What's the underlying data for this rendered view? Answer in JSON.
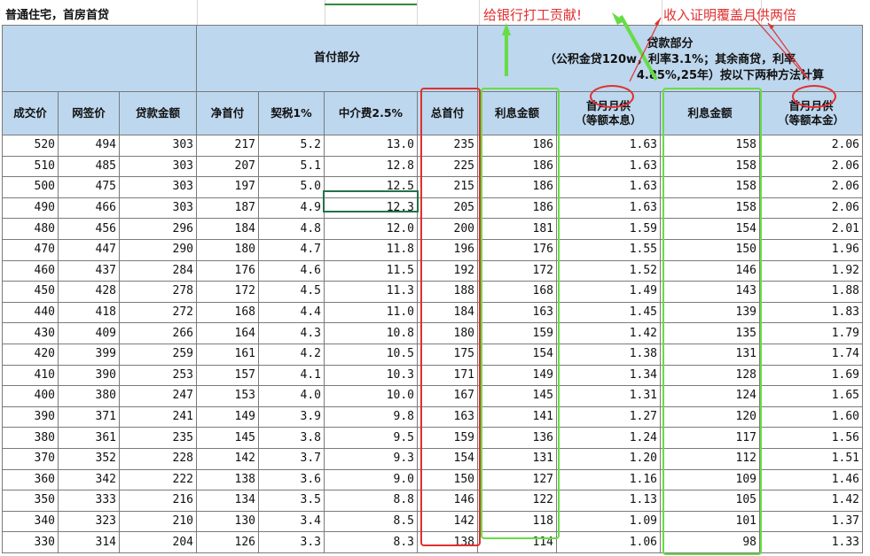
{
  "title": "普通住宅，首房首贷",
  "annotations": {
    "bank_note": "给银行打工贡献!",
    "income_note": "收入证明覆盖月供两倍"
  },
  "groups": {
    "down_payment": "首付部分",
    "loan_title": "贷款部分",
    "loan_desc_1": "（公积金贷120w，利率3.1%；其余商贷，利率",
    "loan_desc_2": "4.85%,25年）按以下两种方法计算"
  },
  "headers": {
    "deal_price": "成交价",
    "net_sign_price": "网签价",
    "loan_amount": "贷款金额",
    "net_down": "净首付",
    "deed_tax": "契税1%",
    "agency_fee": "中介费2.5%",
    "total_down": "总首付",
    "interest_a": "利息金额",
    "monthly_a_1": "首月月供",
    "monthly_a_2": "（等额本息）",
    "interest_b": "利息金额",
    "monthly_b_1": "首月月供",
    "monthly_b_2": "（等额本金）"
  },
  "rows": [
    [
      "520",
      "494",
      "303",
      "217",
      "5.2",
      "13.0",
      "235",
      "186",
      "1.63",
      "158",
      "2.06"
    ],
    [
      "510",
      "485",
      "303",
      "207",
      "5.1",
      "12.8",
      "225",
      "186",
      "1.63",
      "158",
      "2.06"
    ],
    [
      "500",
      "475",
      "303",
      "197",
      "5.0",
      "12.5",
      "215",
      "186",
      "1.63",
      "158",
      "2.06"
    ],
    [
      "490",
      "466",
      "303",
      "187",
      "4.9",
      "12.3",
      "205",
      "186",
      "1.63",
      "158",
      "2.06"
    ],
    [
      "480",
      "456",
      "296",
      "184",
      "4.8",
      "12.0",
      "200",
      "181",
      "1.59",
      "154",
      "2.01"
    ],
    [
      "470",
      "447",
      "290",
      "180",
      "4.7",
      "11.8",
      "196",
      "176",
      "1.55",
      "150",
      "1.96"
    ],
    [
      "460",
      "437",
      "284",
      "176",
      "4.6",
      "11.5",
      "192",
      "172",
      "1.52",
      "146",
      "1.92"
    ],
    [
      "450",
      "428",
      "278",
      "172",
      "4.5",
      "11.3",
      "188",
      "168",
      "1.49",
      "143",
      "1.88"
    ],
    [
      "440",
      "418",
      "272",
      "168",
      "4.4",
      "11.0",
      "184",
      "163",
      "1.45",
      "139",
      "1.83"
    ],
    [
      "430",
      "409",
      "266",
      "164",
      "4.3",
      "10.8",
      "180",
      "159",
      "1.42",
      "135",
      "1.79"
    ],
    [
      "420",
      "399",
      "259",
      "161",
      "4.2",
      "10.5",
      "175",
      "154",
      "1.38",
      "131",
      "1.74"
    ],
    [
      "410",
      "390",
      "253",
      "157",
      "4.1",
      "10.3",
      "171",
      "149",
      "1.34",
      "128",
      "1.69"
    ],
    [
      "400",
      "380",
      "247",
      "153",
      "4.0",
      "10.0",
      "167",
      "145",
      "1.31",
      "124",
      "1.65"
    ],
    [
      "390",
      "371",
      "241",
      "149",
      "3.9",
      "9.8",
      "163",
      "141",
      "1.27",
      "120",
      "1.60"
    ],
    [
      "380",
      "361",
      "235",
      "145",
      "3.8",
      "9.5",
      "159",
      "136",
      "1.24",
      "117",
      "1.56"
    ],
    [
      "370",
      "352",
      "228",
      "142",
      "3.7",
      "9.3",
      "154",
      "131",
      "1.20",
      "112",
      "1.51"
    ],
    [
      "360",
      "342",
      "222",
      "138",
      "3.6",
      "9.0",
      "150",
      "127",
      "1.16",
      "109",
      "1.46"
    ],
    [
      "350",
      "333",
      "216",
      "134",
      "3.5",
      "8.8",
      "146",
      "122",
      "1.13",
      "105",
      "1.42"
    ],
    [
      "340",
      "323",
      "210",
      "130",
      "3.4",
      "8.5",
      "142",
      "118",
      "1.09",
      "101",
      "1.37"
    ],
    [
      "330",
      "314",
      "204",
      "126",
      "3.3",
      "8.3",
      "138",
      "114",
      "1.06",
      "98",
      "1.33"
    ]
  ],
  "colors": {
    "header_bg": "#bdd7ee",
    "red_mark": "#e03030",
    "green_mark": "#66dd44"
  }
}
